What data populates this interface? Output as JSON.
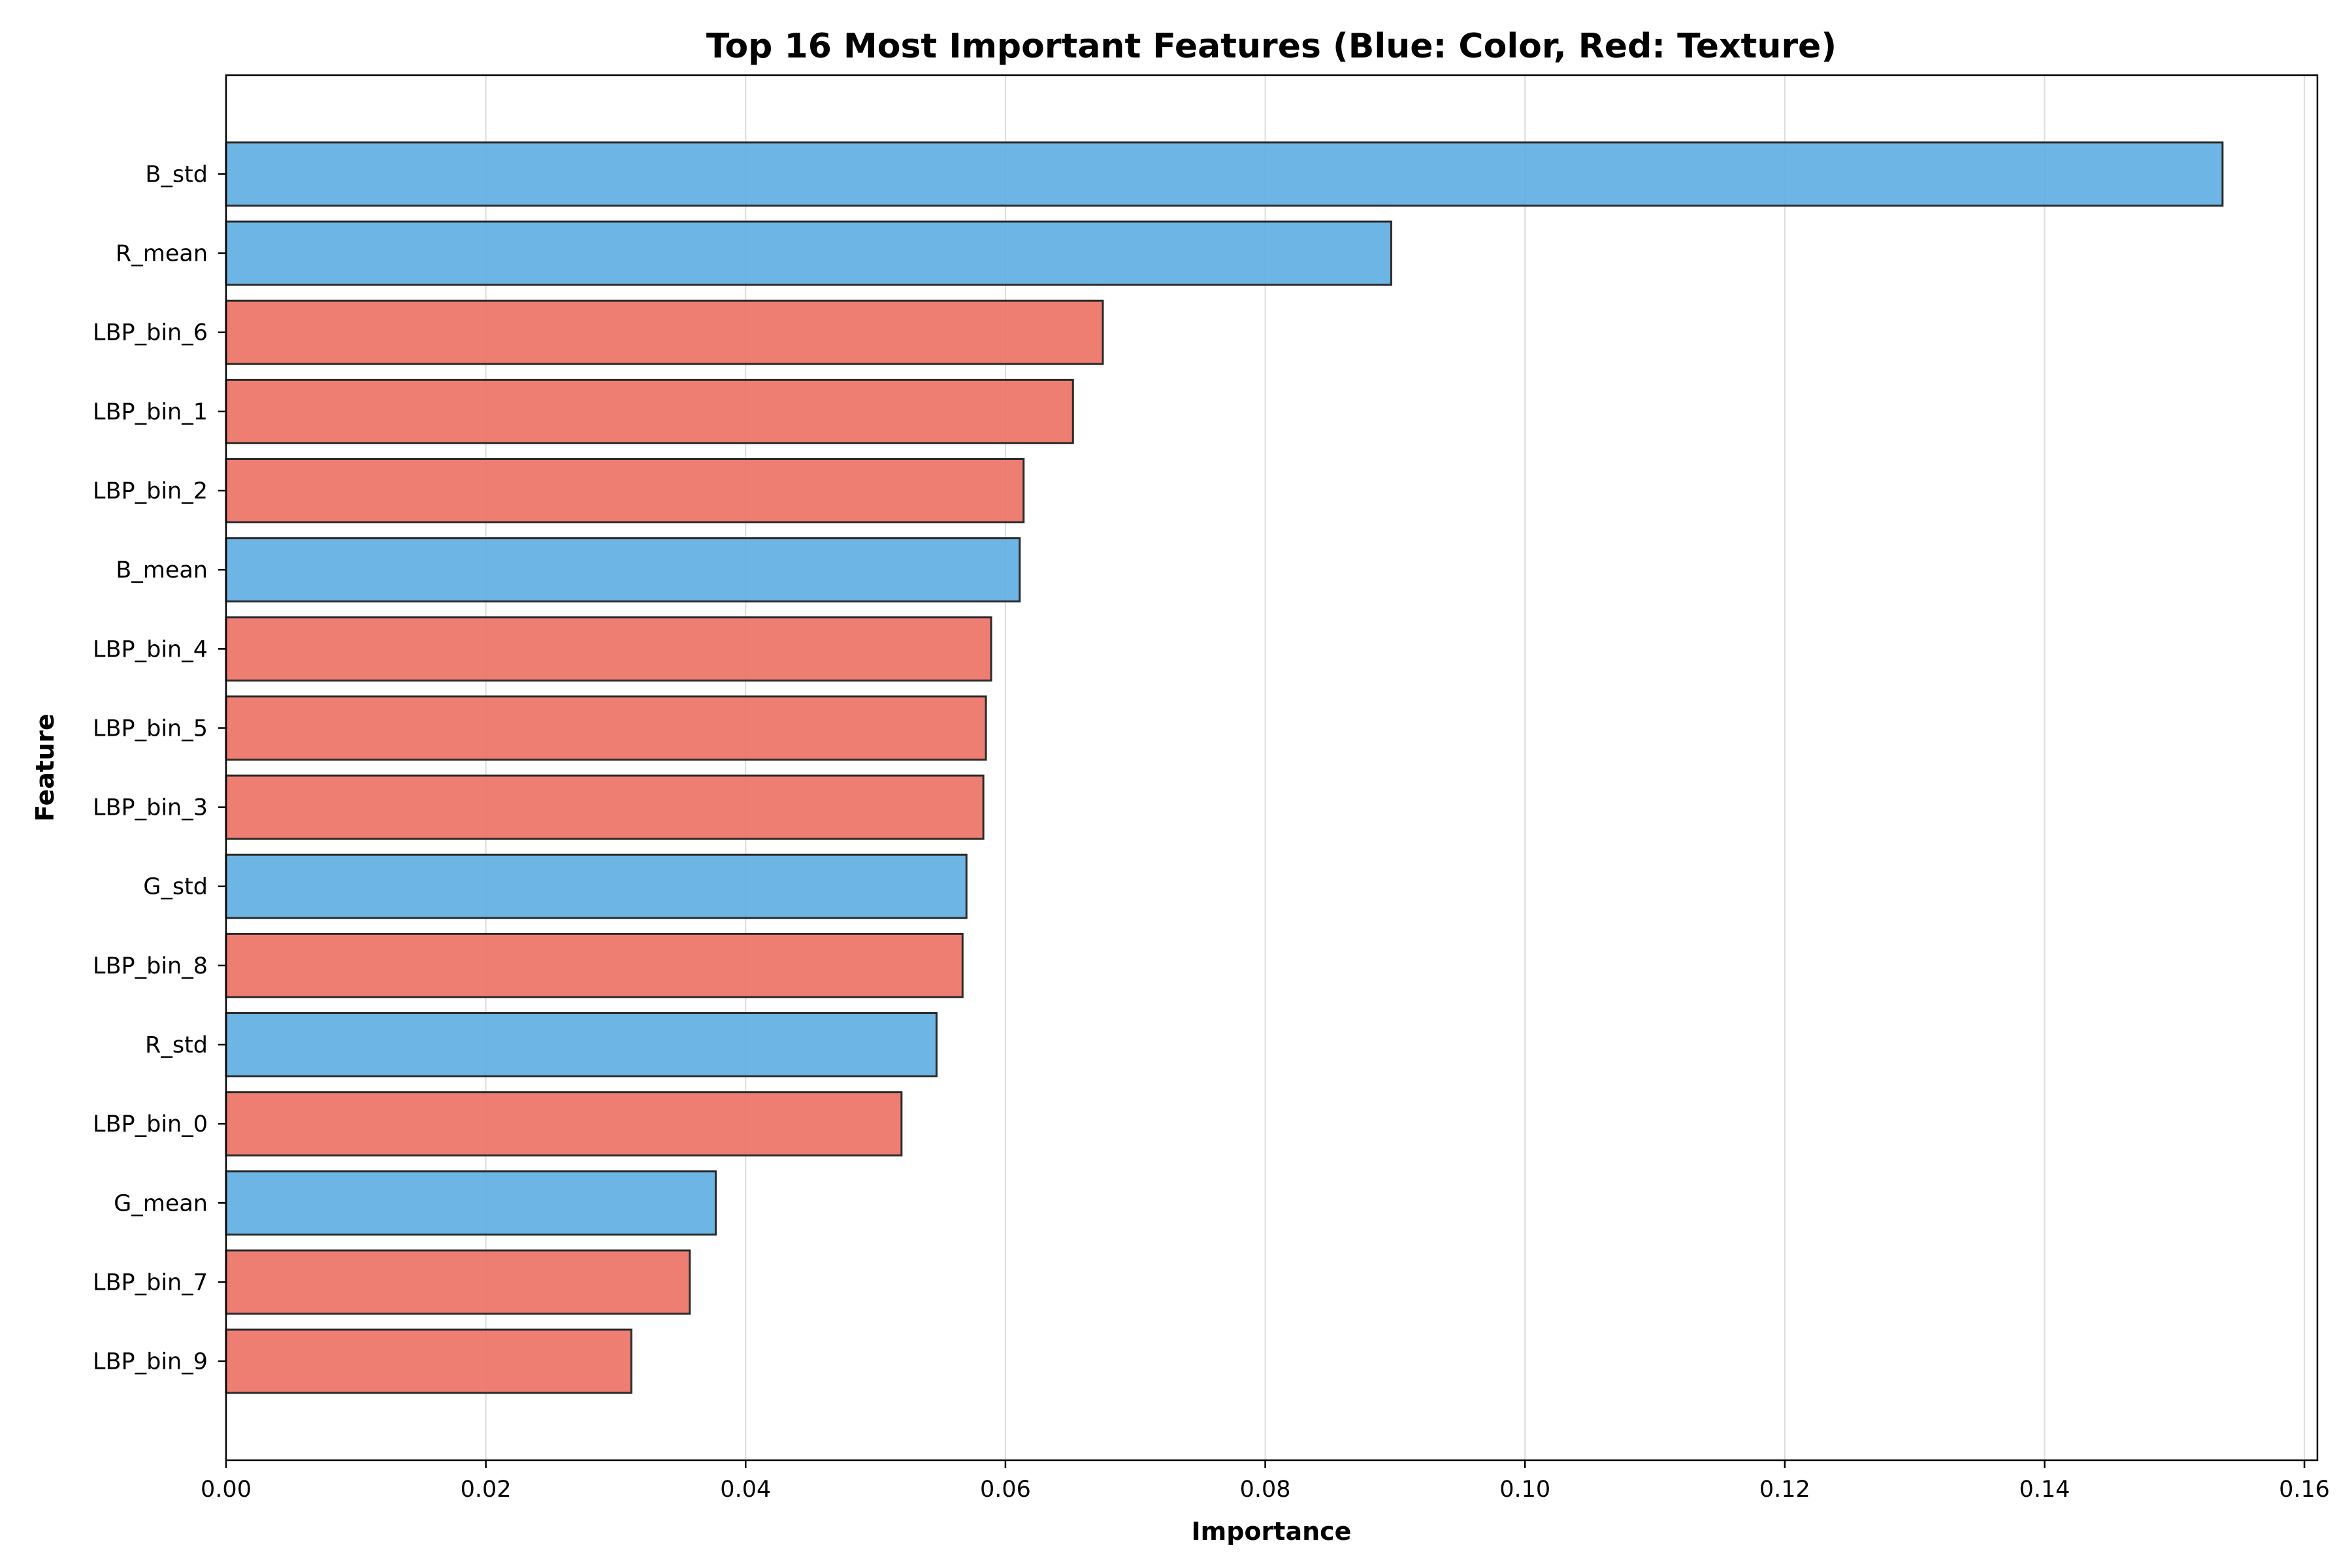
{
  "chart_data": {
    "type": "bar",
    "orientation": "horizontal",
    "title": "Top 16 Most Important Features (Blue: Color, Red: Texture)",
    "xlabel": "Importance",
    "ylabel": "Feature",
    "xlim": [
      0,
      0.161
    ],
    "xticks": [
      "0.00",
      "0.02",
      "0.04",
      "0.06",
      "0.08",
      "0.10",
      "0.12",
      "0.14",
      "0.16"
    ],
    "grid": "x-axis vertical lines",
    "category_colors": {
      "color": "#5DADE2",
      "texture": "#EC7063"
    },
    "bars": [
      {
        "feature": "B_std",
        "value": 0.1537,
        "group": "color"
      },
      {
        "feature": "R_mean",
        "value": 0.0897,
        "group": "color"
      },
      {
        "feature": "LBP_bin_6",
        "value": 0.0675,
        "group": "texture"
      },
      {
        "feature": "LBP_bin_1",
        "value": 0.0652,
        "group": "texture"
      },
      {
        "feature": "LBP_bin_2",
        "value": 0.0614,
        "group": "texture"
      },
      {
        "feature": "B_mean",
        "value": 0.0611,
        "group": "color"
      },
      {
        "feature": "LBP_bin_4",
        "value": 0.0589,
        "group": "texture"
      },
      {
        "feature": "LBP_bin_5",
        "value": 0.0585,
        "group": "texture"
      },
      {
        "feature": "LBP_bin_3",
        "value": 0.0583,
        "group": "texture"
      },
      {
        "feature": "G_std",
        "value": 0.057,
        "group": "color"
      },
      {
        "feature": "LBP_bin_8",
        "value": 0.0567,
        "group": "texture"
      },
      {
        "feature": "R_std",
        "value": 0.0547,
        "group": "color"
      },
      {
        "feature": "LBP_bin_0",
        "value": 0.052,
        "group": "texture"
      },
      {
        "feature": "G_mean",
        "value": 0.0377,
        "group": "color"
      },
      {
        "feature": "LBP_bin_7",
        "value": 0.0357,
        "group": "texture"
      },
      {
        "feature": "LBP_bin_9",
        "value": 0.0312,
        "group": "texture"
      }
    ]
  }
}
